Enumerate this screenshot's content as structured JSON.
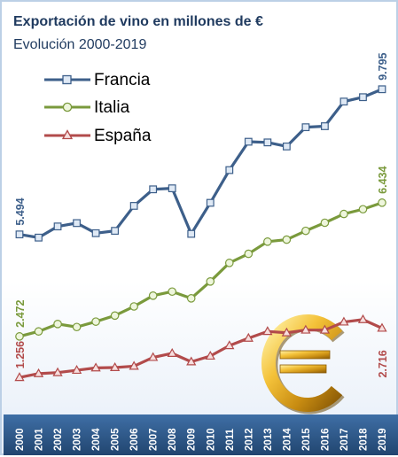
{
  "chart_data": {
    "type": "line",
    "title": "Exportación de vino en millones de €",
    "subtitle": "Evolución 2000-2019",
    "categories": [
      "2000",
      "2001",
      "2002",
      "2003",
      "2004",
      "2005",
      "2006",
      "2007",
      "2008",
      "2009",
      "2010",
      "2011",
      "2012",
      "2013",
      "2014",
      "2015",
      "2016",
      "2017",
      "2018",
      "2019"
    ],
    "series": [
      {
        "name": "Francia",
        "color": "#3d5f8a",
        "marker": "square",
        "values": [
          5.494,
          5.4,
          5.73,
          5.83,
          5.53,
          5.6,
          6.34,
          6.83,
          6.86,
          5.51,
          6.43,
          7.4,
          8.24,
          8.22,
          8.1,
          8.67,
          8.7,
          9.43,
          9.56,
          9.795
        ],
        "labels": {
          "start": "5.494",
          "end": "9.795"
        }
      },
      {
        "name": "Italia",
        "color": "#7a9a3c",
        "marker": "circle",
        "values": [
          2.472,
          2.62,
          2.84,
          2.75,
          2.91,
          3.09,
          3.36,
          3.68,
          3.8,
          3.6,
          4.1,
          4.65,
          4.92,
          5.28,
          5.34,
          5.6,
          5.84,
          6.1,
          6.24,
          6.434
        ],
        "labels": {
          "start": "2.472",
          "end": "6.434"
        }
      },
      {
        "name": "España",
        "color": "#b24b4b",
        "marker": "triangle",
        "values": [
          1.256,
          1.37,
          1.4,
          1.47,
          1.54,
          1.55,
          1.59,
          1.85,
          1.97,
          1.72,
          1.89,
          2.2,
          2.42,
          2.62,
          2.58,
          2.66,
          2.66,
          2.9,
          2.97,
          2.716
        ],
        "labels": {
          "start": "1.256",
          "end": "2.716"
        }
      }
    ],
    "xlabel": "",
    "ylabel": "",
    "ylim": [
      0,
      11
    ],
    "grid": false,
    "legend": "top-left",
    "axis_band_color": "#2f5b8c",
    "decoration": "euro-icon"
  }
}
